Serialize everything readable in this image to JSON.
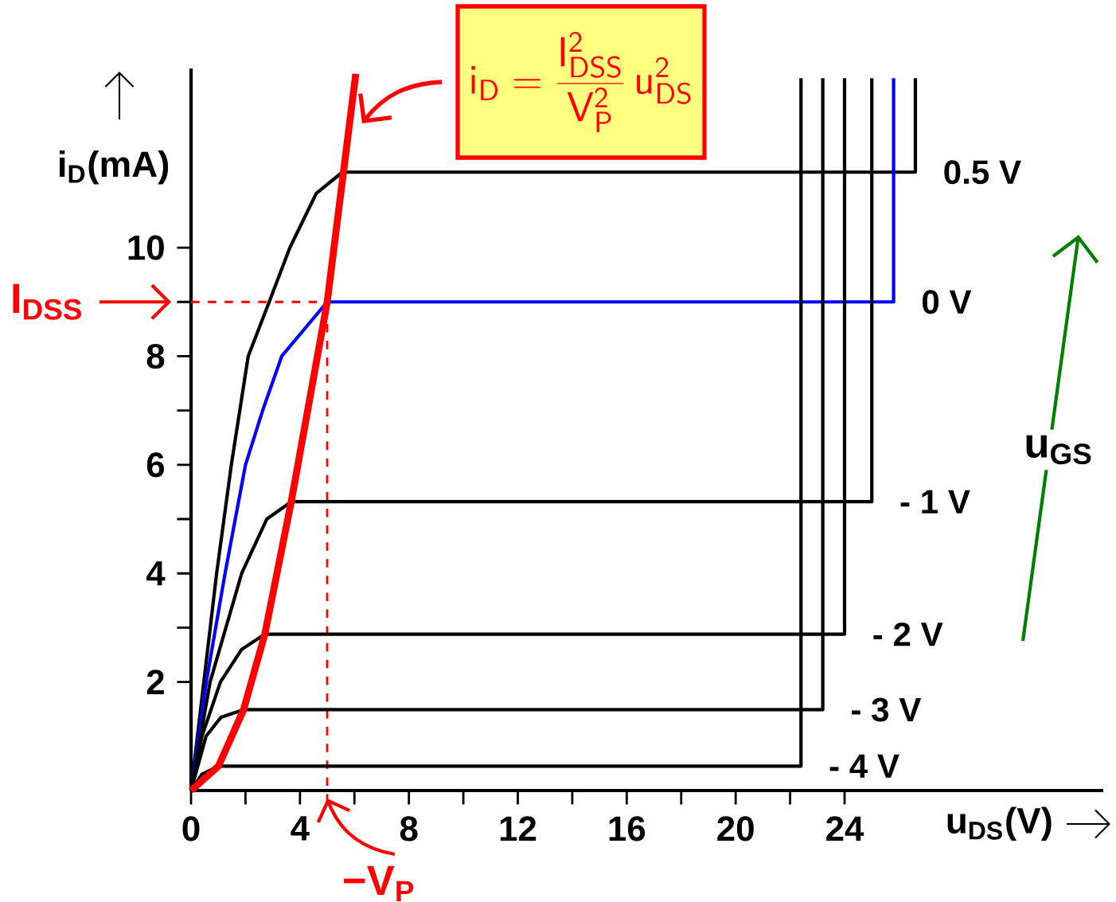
{
  "chart_data": {
    "type": "line",
    "xlabel": "u$_{DS}$(V)",
    "ylabel": "i$_{D}$(mA)",
    "annotations": [
      "\\mathsf{i_{D}=\\frac{I_{DSS}^{2}}{V_{P}^{2}}\\,u_{DS}^{2}}",
      "u$_{GS}$"
    ],
    "xlim": [
      0,
      33.5
    ],
    "ylim": [
      0,
      13.3
    ],
    "xticks": [
      0,
      4,
      8,
      12,
      16,
      20,
      24
    ],
    "yticks": [
      2,
      4,
      6,
      8,
      10
    ],
    "ref_lines": [
      {
        "axis": "y",
        "value": 9,
        "label": "I$_{DSS}$",
        "color": "#ff0000",
        "line_style": "dashed"
      },
      {
        "axis": "x",
        "value": 5,
        "label": "−V$_{P}$",
        "color": "#ff0000",
        "line_style": "dashed"
      }
    ],
    "series": [
      {
        "name": "0.5 V",
        "color": "#000000",
        "x": [
          0,
          0.47,
          0.94,
          1.48,
          2.1,
          2.87,
          3.63,
          4.6,
          5.56,
          26.6,
          26.6
        ],
        "values": [
          0,
          2,
          4,
          6,
          8,
          9,
          10,
          11,
          11.39,
          11.39,
          13.12
        ]
      },
      {
        "name": "0 V",
        "color": "#0000ff",
        "x": [
          0,
          0.56,
          1.25,
          2.0,
          2.63,
          3.33,
          5.0,
          25.8,
          25.8
        ],
        "values": [
          0,
          2,
          4,
          6,
          7,
          8,
          9,
          9,
          13.12
        ]
      },
      {
        "name": "- 1 V",
        "color": "#000000",
        "x": [
          0,
          0.7,
          1.86,
          2.78,
          3.68,
          25.0,
          25.0
        ],
        "values": [
          0,
          2,
          4,
          5,
          5.32,
          5.32,
          13.12
        ]
      },
      {
        "name": "- 2 V",
        "color": "#000000",
        "x": [
          0,
          0.4,
          1.08,
          1.86,
          2.71,
          24.0,
          24.0
        ],
        "values": [
          0,
          1,
          2,
          2.6,
          2.88,
          2.88,
          13.12
        ]
      },
      {
        "name": "- 3 V",
        "color": "#000000",
        "x": [
          0,
          0.55,
          1.1,
          1.93,
          23.2,
          23.2
        ],
        "values": [
          0,
          1,
          1.35,
          1.49,
          1.49,
          13.12
        ]
      },
      {
        "name": "- 4 V",
        "color": "#000000",
        "x": [
          0,
          0.4,
          1.01,
          22.4,
          22.4
        ],
        "values": [
          0,
          0.3,
          0.45,
          0.45,
          13.12
        ]
      },
      {
        "color": "#ff0000",
        "x": [
          0,
          1.01,
          1.93,
          2.71,
          3.68,
          5.0,
          6.05
        ],
        "values": [
          0,
          0.45,
          1.49,
          2.88,
          5.32,
          9,
          13.2
        ]
      }
    ]
  }
}
